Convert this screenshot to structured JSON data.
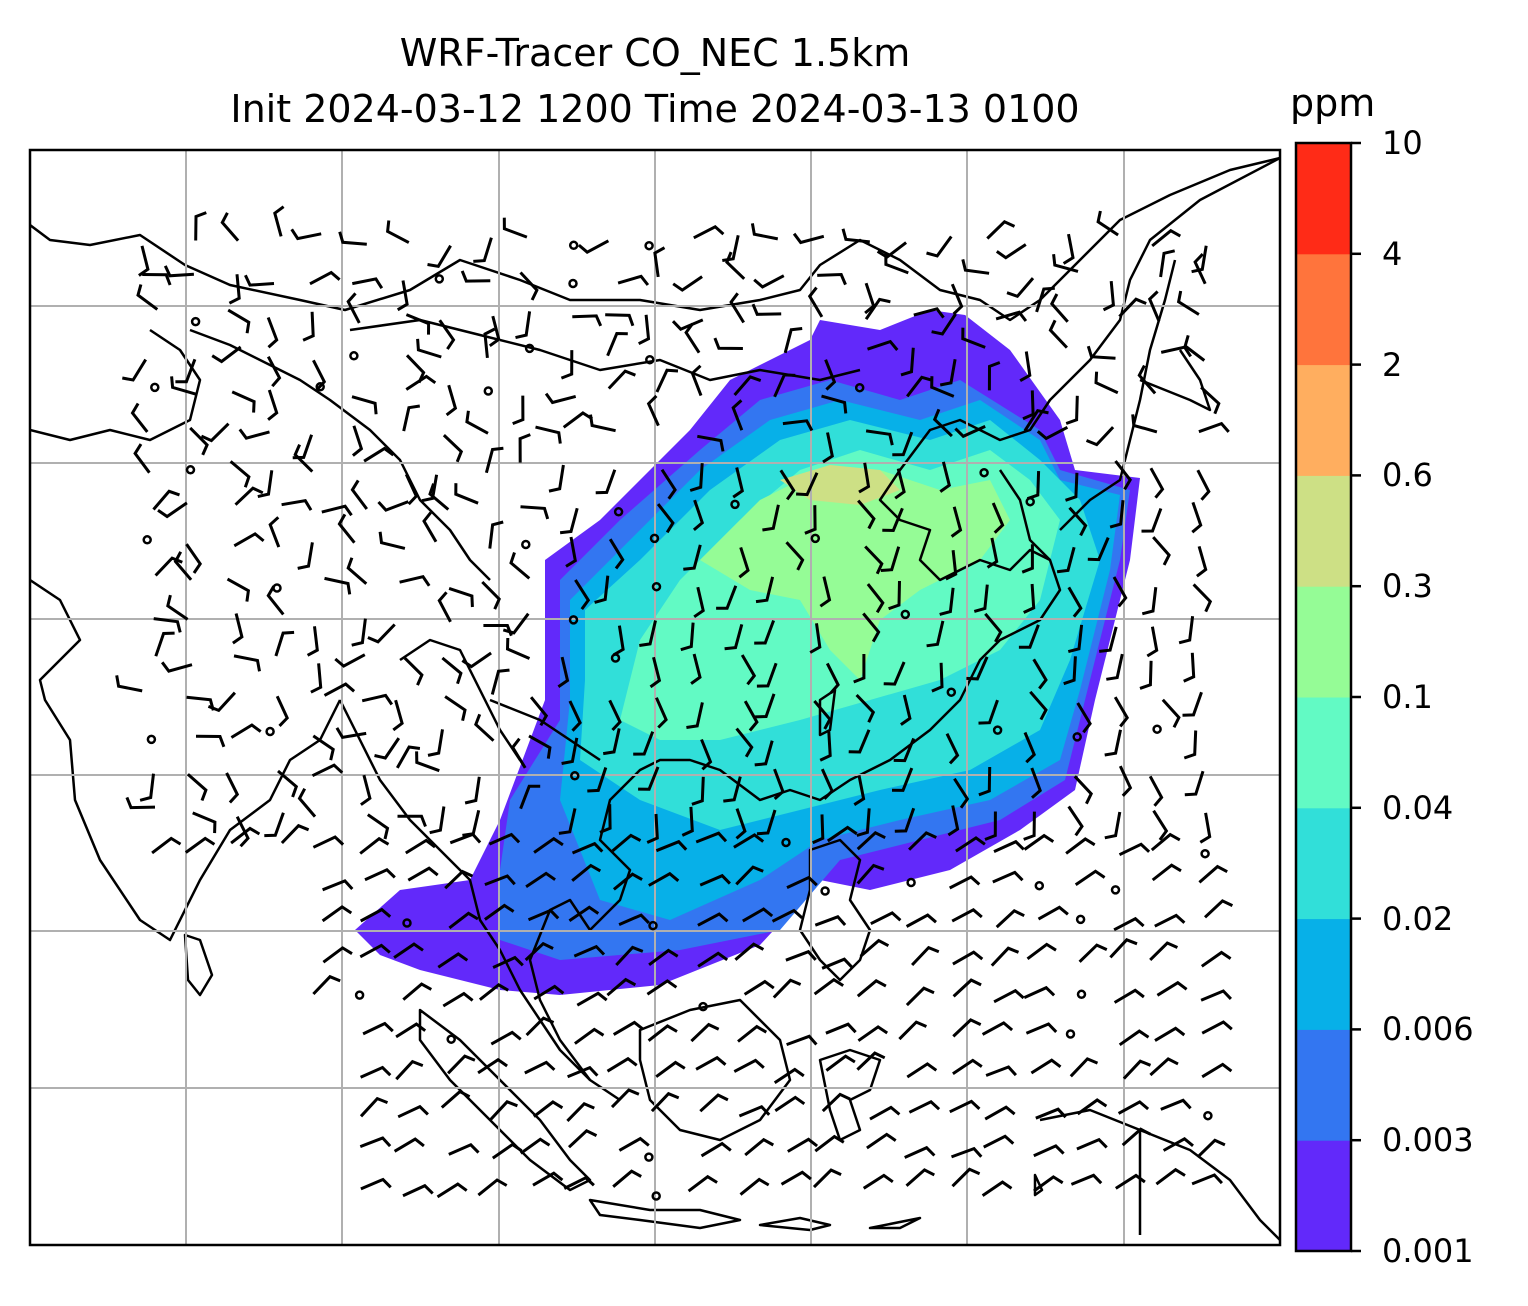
{
  "title": {
    "line1": "WRF-Tracer CO_NEC 1.5km",
    "line2": "Init 2024-03-12 1200 Time 2024-03-13 0100"
  },
  "colorbar": {
    "unit": "ppm",
    "levels": [
      "0.001",
      "0.003",
      "0.006",
      "0.02",
      "0.04",
      "0.1",
      "0.3",
      "0.6",
      "2",
      "4",
      "10"
    ],
    "colors": [
      "#6229fa",
      "#3376f1",
      "#07b0e8",
      "#31dfd9",
      "#62fac4",
      "#95fc96",
      "#cde085",
      "#ffae5f",
      "#ff743c",
      "#ff2b17"
    ]
  },
  "map": {
    "gridlines": true,
    "overlay": "wind-barbs",
    "plume_colors": {
      "low": "#6229fa",
      "mid": "#3376f1",
      "cyan": "#07b0e8",
      "teal": "#31dfd9",
      "aqua": "#62fac4",
      "green": "#95fc96",
      "yellow": "#cde085"
    }
  }
}
